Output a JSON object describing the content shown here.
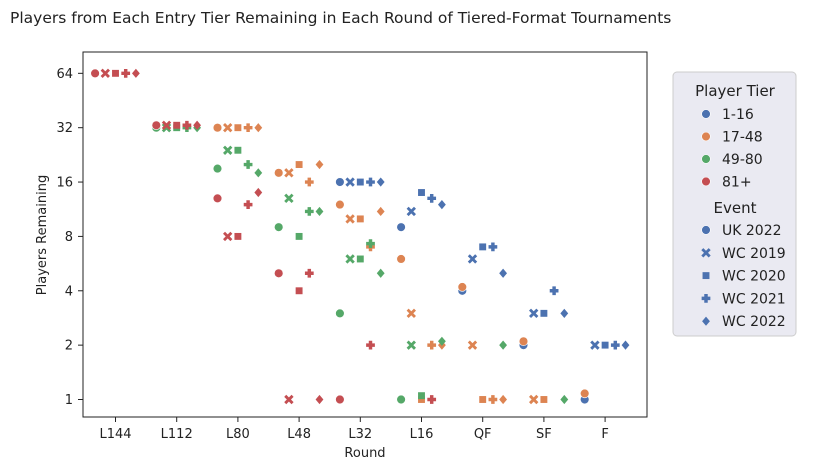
{
  "chart_data": {
    "type": "scatter",
    "title": "Players from Each Entry Tier Remaining in Each Round of Tiered-Format Tournaments",
    "xlabel": "Round",
    "ylabel": "Players Remaining",
    "y_scale": "log2",
    "ylim": [
      0.8,
      84
    ],
    "grid": false,
    "legend_position": "outside-right",
    "categories": [
      "L144",
      "L112",
      "L80",
      "L48",
      "L32",
      "L16",
      "QF",
      "SF",
      "F"
    ],
    "y_ticks": [
      1,
      2,
      4,
      8,
      16,
      32,
      64
    ],
    "y_tick_labels": [
      "1",
      "2",
      "4",
      "8",
      "16",
      "32",
      "64"
    ],
    "legend": {
      "hue_title": "Player Tier",
      "style_title": "Event"
    },
    "tiers": [
      {
        "name": "1-16",
        "color": "#4c72b0"
      },
      {
        "name": "17-48",
        "color": "#dd8452"
      },
      {
        "name": "49-80",
        "color": "#55a868"
      },
      {
        "name": "81+",
        "color": "#c44e52"
      }
    ],
    "events": [
      {
        "name": "UK 2022",
        "marker": "circle"
      },
      {
        "name": "WC 2019",
        "marker": "x"
      },
      {
        "name": "WC 2020",
        "marker": "square"
      },
      {
        "name": "WC 2021",
        "marker": "plus"
      },
      {
        "name": "WC 2022",
        "marker": "diamond"
      }
    ],
    "series": [
      {
        "tier": "1-16",
        "event": "UK 2022",
        "values": [
          null,
          null,
          null,
          null,
          16,
          9,
          4,
          2,
          1
        ]
      },
      {
        "tier": "1-16",
        "event": "WC 2019",
        "values": [
          null,
          null,
          null,
          null,
          16,
          11,
          6,
          3,
          2
        ]
      },
      {
        "tier": "1-16",
        "event": "WC 2020",
        "values": [
          null,
          null,
          null,
          null,
          16,
          14,
          7,
          3,
          2
        ]
      },
      {
        "tier": "1-16",
        "event": "WC 2021",
        "values": [
          null,
          null,
          null,
          null,
          16,
          13,
          7,
          4,
          2
        ]
      },
      {
        "tier": "1-16",
        "event": "WC 2022",
        "values": [
          null,
          null,
          null,
          null,
          16,
          12,
          5,
          3,
          2
        ]
      },
      {
        "tier": "17-48",
        "event": "UK 2022",
        "values": [
          null,
          null,
          32,
          18,
          12,
          6,
          4.2,
          2.1,
          1.08
        ]
      },
      {
        "tier": "17-48",
        "event": "WC 2019",
        "values": [
          null,
          null,
          32,
          18,
          10,
          3,
          2,
          1,
          null
        ]
      },
      {
        "tier": "17-48",
        "event": "WC 2020",
        "values": [
          null,
          null,
          32,
          20,
          10,
          1,
          1,
          1,
          null
        ]
      },
      {
        "tier": "17-48",
        "event": "WC 2021",
        "values": [
          null,
          null,
          32,
          16,
          7,
          2,
          1,
          null,
          null
        ]
      },
      {
        "tier": "17-48",
        "event": "WC 2022",
        "values": [
          null,
          null,
          32,
          20,
          11,
          2,
          1,
          null,
          null
        ]
      },
      {
        "tier": "49-80",
        "event": "UK 2022",
        "values": [
          null,
          32,
          19,
          9,
          3,
          1,
          null,
          null,
          null
        ]
      },
      {
        "tier": "49-80",
        "event": "WC 2019",
        "values": [
          null,
          32,
          24,
          13,
          6,
          2,
          null,
          null,
          null
        ]
      },
      {
        "tier": "49-80",
        "event": "WC 2020",
        "values": [
          null,
          32,
          24,
          8,
          6,
          1.05,
          null,
          null,
          null
        ]
      },
      {
        "tier": "49-80",
        "event": "WC 2021",
        "values": [
          null,
          32,
          20,
          11,
          7.3,
          null,
          null,
          null,
          null
        ]
      },
      {
        "tier": "49-80",
        "event": "WC 2022",
        "values": [
          null,
          32,
          18,
          11,
          5,
          2.1,
          2,
          1,
          null
        ]
      },
      {
        "tier": "81+",
        "event": "UK 2022",
        "values": [
          64,
          33,
          13,
          5,
          1,
          null,
          null,
          null,
          null
        ]
      },
      {
        "tier": "81+",
        "event": "WC 2019",
        "values": [
          64,
          33,
          8,
          1,
          null,
          null,
          null,
          null,
          null
        ]
      },
      {
        "tier": "81+",
        "event": "WC 2020",
        "values": [
          64,
          33,
          8,
          4,
          null,
          null,
          null,
          null,
          null
        ]
      },
      {
        "tier": "81+",
        "event": "WC 2021",
        "values": [
          64,
          33,
          12,
          5,
          2,
          1,
          null,
          null,
          null
        ]
      },
      {
        "tier": "81+",
        "event": "WC 2022",
        "values": [
          64,
          33,
          14,
          1,
          null,
          null,
          null,
          null,
          null
        ]
      }
    ]
  }
}
